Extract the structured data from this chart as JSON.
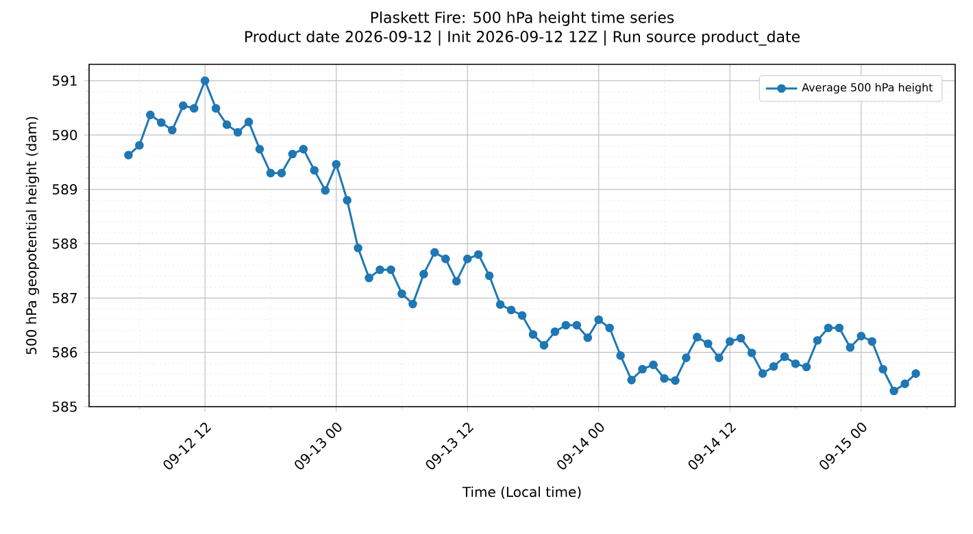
{
  "chart_data": {
    "type": "line",
    "title": "Plaskett Fire: 500 hPa height time series",
    "subtitle": "Product date 2026-09-12 | Init 2026-09-12 12Z | Run source product_date",
    "xlabel": "Time (Local time)",
    "ylabel": "500 hPa geopotential height (dam)",
    "x": [
      "2026-09-12T05:00",
      "2026-09-12T06:00",
      "2026-09-12T07:00",
      "2026-09-12T08:00",
      "2026-09-12T09:00",
      "2026-09-12T10:00",
      "2026-09-12T11:00",
      "2026-09-12T12:00",
      "2026-09-12T13:00",
      "2026-09-12T14:00",
      "2026-09-12T15:00",
      "2026-09-12T16:00",
      "2026-09-12T17:00",
      "2026-09-12T18:00",
      "2026-09-12T19:00",
      "2026-09-12T20:00",
      "2026-09-12T21:00",
      "2026-09-12T22:00",
      "2026-09-12T23:00",
      "2026-09-13T00:00",
      "2026-09-13T01:00",
      "2026-09-13T02:00",
      "2026-09-13T03:00",
      "2026-09-13T04:00",
      "2026-09-13T05:00",
      "2026-09-13T06:00",
      "2026-09-13T07:00",
      "2026-09-13T08:00",
      "2026-09-13T09:00",
      "2026-09-13T10:00",
      "2026-09-13T11:00",
      "2026-09-13T12:00",
      "2026-09-13T13:00",
      "2026-09-13T14:00",
      "2026-09-13T15:00",
      "2026-09-13T16:00",
      "2026-09-13T17:00",
      "2026-09-13T18:00",
      "2026-09-13T19:00",
      "2026-09-13T20:00",
      "2026-09-13T21:00",
      "2026-09-13T22:00",
      "2026-09-13T23:00",
      "2026-09-14T00:00",
      "2026-09-14T01:00",
      "2026-09-14T02:00",
      "2026-09-14T03:00",
      "2026-09-14T04:00",
      "2026-09-14T05:00",
      "2026-09-14T06:00",
      "2026-09-14T07:00",
      "2026-09-14T08:00",
      "2026-09-14T09:00",
      "2026-09-14T10:00",
      "2026-09-14T11:00",
      "2026-09-14T12:00",
      "2026-09-14T13:00",
      "2026-09-14T14:00",
      "2026-09-14T15:00",
      "2026-09-14T16:00",
      "2026-09-14T17:00",
      "2026-09-14T18:00",
      "2026-09-14T19:00",
      "2026-09-14T20:00",
      "2026-09-14T21:00",
      "2026-09-14T22:00",
      "2026-09-14T23:00",
      "2026-09-15T00:00",
      "2026-09-15T01:00",
      "2026-09-15T02:00",
      "2026-09-15T03:00",
      "2026-09-15T04:00",
      "2026-09-15T05:00"
    ],
    "series": [
      {
        "name": "Average 500 hPa height",
        "color": "#1f77b4",
        "values": [
          589.63,
          589.81,
          590.37,
          590.23,
          590.09,
          590.54,
          590.49,
          591.0,
          590.49,
          590.19,
          590.05,
          590.24,
          589.74,
          589.3,
          589.3,
          589.65,
          589.74,
          589.35,
          588.98,
          589.46,
          588.8,
          587.92,
          587.37,
          587.52,
          587.52,
          587.08,
          586.89,
          587.44,
          587.84,
          587.72,
          587.31,
          587.72,
          587.8,
          587.41,
          586.88,
          586.78,
          586.68,
          586.33,
          586.13,
          586.38,
          586.5,
          586.5,
          586.27,
          586.6,
          586.45,
          585.94,
          585.49,
          585.69,
          585.77,
          585.52,
          585.48,
          585.9,
          586.28,
          586.16,
          585.9,
          586.2,
          586.26,
          585.99,
          585.61,
          585.74,
          585.92,
          585.79,
          585.73,
          586.22,
          586.45,
          586.45,
          586.09,
          586.3,
          586.2,
          585.69,
          585.29,
          585.42,
          585.61
        ]
      }
    ],
    "xlim": [
      "2026-09-12T01:24",
      "2026-09-15T08:36"
    ],
    "xticks": [
      {
        "value": "2026-09-12T06:00",
        "label": null
      },
      {
        "value": "2026-09-12T12:00",
        "label": "09-12 12"
      },
      {
        "value": "2026-09-12T18:00",
        "label": null
      },
      {
        "value": "2026-09-13T00:00",
        "label": "09-13 00"
      },
      {
        "value": "2026-09-13T06:00",
        "label": null
      },
      {
        "value": "2026-09-13T12:00",
        "label": "09-13 12"
      },
      {
        "value": "2026-09-13T18:00",
        "label": null
      },
      {
        "value": "2026-09-14T00:00",
        "label": "09-14 00"
      },
      {
        "value": "2026-09-14T06:00",
        "label": null
      },
      {
        "value": "2026-09-14T12:00",
        "label": "09-14 12"
      },
      {
        "value": "2026-09-14T18:00",
        "label": null
      },
      {
        "value": "2026-09-15T00:00",
        "label": "09-15 00"
      },
      {
        "value": "2026-09-15T06:00",
        "label": null
      }
    ],
    "ylim": [
      585.0,
      591.3
    ],
    "yticks": [
      585,
      {
        "value": 585.2,
        "label": null
      },
      {
        "value": 585.4,
        "label": null
      },
      {
        "value": 585.6,
        "label": null
      },
      {
        "value": 585.8,
        "label": null
      },
      586,
      {
        "value": 586.2,
        "label": null
      },
      {
        "value": 586.4,
        "label": null
      },
      {
        "value": 586.6,
        "label": null
      },
      {
        "value": 586.8,
        "label": null
      },
      587,
      {
        "value": 587.2,
        "label": null
      },
      {
        "value": 587.4,
        "label": null
      },
      {
        "value": 587.6,
        "label": null
      },
      {
        "value": 587.8,
        "label": null
      },
      588,
      {
        "value": 588.2,
        "label": null
      },
      {
        "value": 588.4,
        "label": null
      },
      {
        "value": 588.6,
        "label": null
      },
      {
        "value": 588.8,
        "label": null
      },
      589,
      {
        "value": 589.2,
        "label": null
      },
      {
        "value": 589.4,
        "label": null
      },
      {
        "value": 589.6,
        "label": null
      },
      {
        "value": 589.8,
        "label": null
      },
      590,
      {
        "value": 590.2,
        "label": null
      },
      {
        "value": 590.4,
        "label": null
      },
      {
        "value": 590.6,
        "label": null
      },
      {
        "value": 590.8,
        "label": null
      },
      591,
      {
        "value": 591.2,
        "label": null
      }
    ],
    "grid": true,
    "legend": "top right",
    "marker": "circle",
    "line_style": "solid"
  }
}
